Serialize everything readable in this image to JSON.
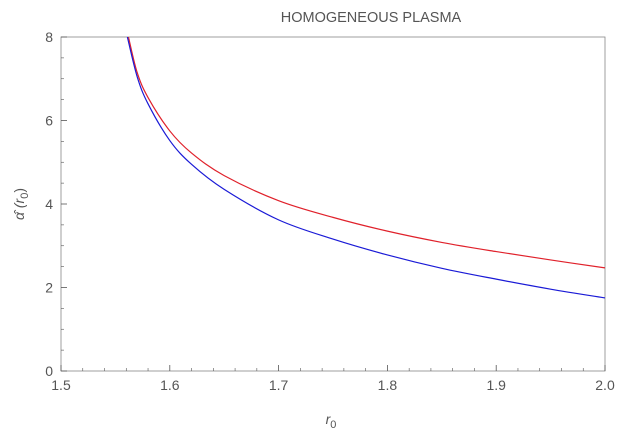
{
  "chart_data": {
    "type": "line",
    "title": "HOMOGENEOUS PLASMA",
    "xlabel": "r",
    "xlabel_sub": "0",
    "ylabel_main": "α̂ (",
    "ylabel_r": "r",
    "ylabel_sub": "0",
    "ylabel_close": ")",
    "xlim": [
      1.5,
      2.0
    ],
    "ylim": [
      0,
      8
    ],
    "x_ticks": [
      1.5,
      1.6,
      1.7,
      1.8,
      1.9,
      2.0
    ],
    "x_tick_labels": [
      "1.5",
      "1.6",
      "1.7",
      "1.8",
      "1.9",
      "2.0"
    ],
    "y_ticks": [
      0,
      2,
      4,
      6,
      8
    ],
    "y_tick_labels": [
      "0",
      "2",
      "4",
      "6",
      "8"
    ],
    "grid": false,
    "series": [
      {
        "color": "#e0212b",
        "x": [
          1.562,
          1.57,
          1.58,
          1.6,
          1.62,
          1.65,
          1.7,
          1.75,
          1.8,
          1.85,
          1.9,
          1.95,
          2.0
        ],
        "y": [
          8.0,
          7.15,
          6.55,
          5.75,
          5.22,
          4.68,
          4.08,
          3.68,
          3.35,
          3.08,
          2.86,
          2.66,
          2.47
        ]
      },
      {
        "color": "#1a1ad6",
        "x": [
          1.561,
          1.57,
          1.58,
          1.6,
          1.62,
          1.65,
          1.7,
          1.75,
          1.8,
          1.85,
          1.9,
          1.95,
          2.0
        ],
        "y": [
          8.0,
          7.05,
          6.4,
          5.52,
          4.95,
          4.35,
          3.62,
          3.16,
          2.78,
          2.46,
          2.2,
          1.96,
          1.75
        ]
      }
    ],
    "colors": {
      "axis": "#555555",
      "frame": "#888888",
      "background": "#ffffff"
    }
  }
}
